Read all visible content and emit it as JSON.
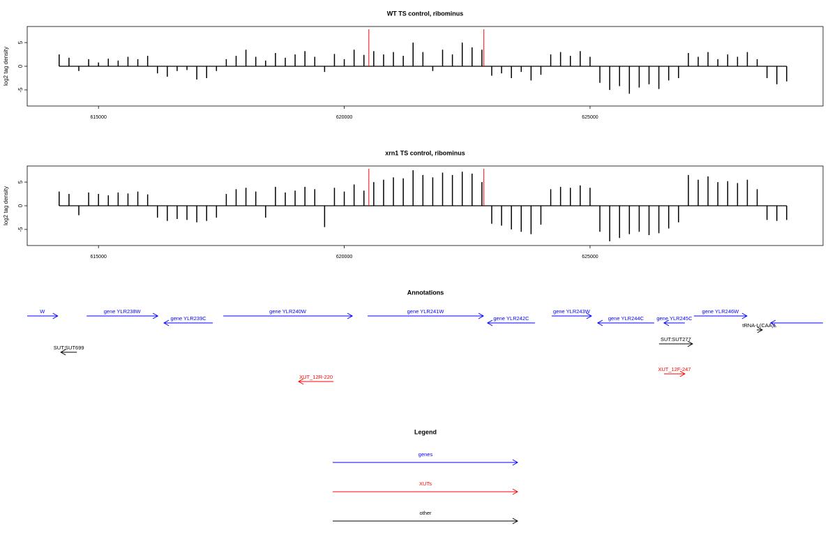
{
  "chart_data": [
    {
      "type": "bar",
      "title": "WT TS control, ribominus",
      "ylabel": "log2 tag density",
      "x": [
        614200,
        614400,
        614600,
        614800,
        615000,
        615200,
        615400,
        615600,
        615800,
        616000,
        616200,
        616400,
        616600,
        616800,
        617000,
        617200,
        617400,
        617600,
        617800,
        618000,
        618200,
        618400,
        618600,
        618800,
        619000,
        619200,
        619400,
        619600,
        619800,
        620000,
        620200,
        620400,
        620600,
        620800,
        621000,
        621200,
        621400,
        621600,
        621800,
        622000,
        622200,
        622400,
        622600,
        622800,
        623000,
        623200,
        623400,
        623600,
        623800,
        624000,
        624200,
        624400,
        624600,
        624800,
        625000,
        625200,
        625400,
        625600,
        625800,
        626000,
        626200,
        626400,
        626600,
        626800,
        627000,
        627200,
        627400,
        627600,
        627800,
        628000,
        628200,
        628400,
        628600,
        628800,
        629000
      ],
      "values": [
        2.5,
        1.8,
        -1,
        1.5,
        0.8,
        1.6,
        1.2,
        2,
        1.5,
        2.2,
        -1.5,
        -2.2,
        -1,
        -0.8,
        -2.8,
        -2.5,
        -1,
        1.5,
        2.2,
        3.5,
        2,
        1.2,
        2.8,
        1.8,
        2.5,
        3.2,
        2,
        -1.2,
        2.6,
        1.5,
        3.5,
        2.4,
        3.2,
        2.5,
        3,
        2.2,
        5,
        3,
        -1,
        3.5,
        2.5,
        5,
        4,
        3.5,
        -2,
        -1.5,
        -2.5,
        -1.2,
        -3,
        -1.8,
        2.5,
        3,
        2.2,
        3.2,
        2,
        -3.5,
        -5,
        -4.2,
        -5.8,
        -4.5,
        -3.8,
        -4.8,
        -3,
        -2.5,
        2.8,
        2,
        3,
        1.5,
        2.5,
        2,
        3,
        1.5,
        -2.5,
        -3.8,
        -3.2
      ],
      "color": "#000000",
      "marker_lines": [
        620500,
        622840
      ],
      "marker_color": "#ff0000",
      "xlim": [
        613550,
        629740
      ],
      "ylim": [
        -8.4,
        8.4
      ],
      "xticks": [
        615000,
        620000,
        625000
      ],
      "yticks": [
        -5,
        0,
        5
      ]
    },
    {
      "type": "bar",
      "title": "xrn1 TS control, ribominus",
      "ylabel": "log2 tag density",
      "x": [
        614200,
        614400,
        614600,
        614800,
        615000,
        615200,
        615400,
        615600,
        615800,
        616000,
        616200,
        616400,
        616600,
        616800,
        617000,
        617200,
        617400,
        617600,
        617800,
        618000,
        618200,
        618400,
        618600,
        618800,
        619000,
        619200,
        619400,
        619600,
        619800,
        620000,
        620200,
        620400,
        620600,
        620800,
        621000,
        621200,
        621400,
        621600,
        621800,
        622000,
        622200,
        622400,
        622600,
        622800,
        623000,
        623200,
        623400,
        623600,
        623800,
        624000,
        624200,
        624400,
        624600,
        624800,
        625000,
        625200,
        625400,
        625600,
        625800,
        626000,
        626200,
        626400,
        626600,
        626800,
        627000,
        627200,
        627400,
        627600,
        627800,
        628000,
        628200,
        628400,
        628600,
        628800,
        629000
      ],
      "values": [
        3,
        2.5,
        -2,
        2.8,
        2.5,
        2.2,
        2.8,
        2.6,
        3,
        2.4,
        -2.5,
        -3.2,
        -2.8,
        -3,
        -3.5,
        -3.2,
        -2.5,
        2.5,
        3.5,
        3.8,
        3,
        -2.5,
        4,
        2.8,
        3.2,
        4,
        3.5,
        -4.5,
        3.8,
        3,
        4.5,
        3.2,
        5,
        5.5,
        6,
        5.8,
        7.5,
        6.5,
        6,
        7,
        6.5,
        7.2,
        6.8,
        5,
        -3.8,
        -4.2,
        -5,
        -5.5,
        -6,
        -4,
        3.5,
        4,
        3.8,
        4.3,
        3.8,
        -5.5,
        -7.5,
        -6.8,
        -6,
        -5.5,
        -6.2,
        -5.8,
        -4.8,
        -3.5,
        6.5,
        5.5,
        6.2,
        5,
        5.2,
        4.8,
        5.5,
        3.5,
        -3,
        -3.2,
        -3
      ],
      "color": "#000000",
      "marker_lines": [
        620500,
        622840
      ],
      "marker_color": "#ff0000",
      "xlim": [
        613550,
        629740
      ],
      "ylim": [
        -8.4,
        8.4
      ],
      "xticks": [
        615000,
        620000,
        625000
      ],
      "yticks": [
        -5,
        0,
        5
      ]
    }
  ],
  "annotations": {
    "title": "Annotations",
    "features": [
      {
        "label": "W",
        "start": 613550,
        "end": 614170,
        "strand": "+",
        "color": "#0000ff"
      },
      {
        "label": "gene YLR238W",
        "start": 614759,
        "end": 616206,
        "strand": "+",
        "color": "#0000ff"
      },
      {
        "label": "gene YLR239C",
        "start": 616333,
        "end": 617326,
        "strand": "-",
        "color": "#0000ff"
      },
      {
        "label": "gene YLR240W",
        "start": 617539,
        "end": 620163,
        "strand": "+",
        "color": "#0000ff"
      },
      {
        "label": "gene YLR241W",
        "start": 620475,
        "end": 622830,
        "strand": "+",
        "color": "#0000ff"
      },
      {
        "label": "gene YLR242C",
        "start": 622915,
        "end": 623879,
        "strand": "-",
        "color": "#0000ff"
      },
      {
        "label": "gene YLR243W",
        "start": 624220,
        "end": 625028,
        "strand": "+",
        "color": "#0000ff"
      },
      {
        "label": "gene YLR244C",
        "start": 625156,
        "end": 626305,
        "strand": "-",
        "color": "#0000ff"
      },
      {
        "label": "gene YLR245C",
        "start": 626504,
        "end": 626929,
        "strand": "-",
        "color": "#0000ff"
      },
      {
        "label": "gene YLR246W",
        "start": 627113,
        "end": 628191,
        "strand": "+",
        "color": "#0000ff"
      },
      {
        "label": "tRNA-L(CAA)L",
        "start": 628390,
        "end": 628504,
        "strand": "+",
        "color": "#000000"
      },
      {
        "label": null,
        "start": 628674,
        "end": 629738,
        "strand": "-",
        "color": "#0000ff"
      },
      {
        "label": "SUT:SUT699",
        "start": 614234,
        "end": 614560,
        "strand": "-",
        "color": "#000000"
      },
      {
        "label": "SUT:SUT277",
        "start": 626404,
        "end": 627085,
        "strand": "+",
        "color": "#000000"
      },
      {
        "label": "XUT_12R-220",
        "start": 619071,
        "end": 619780,
        "strand": "-",
        "color": "#ff0000"
      },
      {
        "label": "XUT_12F-247",
        "start": 626504,
        "end": 626929,
        "strand": "+",
        "color": "#ff0000"
      }
    ]
  },
  "legend": {
    "title": "Legend",
    "entries": [
      {
        "label": "genes",
        "color": "#0000ff"
      },
      {
        "label": "XUTs",
        "color": "#ff0000"
      },
      {
        "label": "other",
        "color": "#000000"
      }
    ]
  }
}
